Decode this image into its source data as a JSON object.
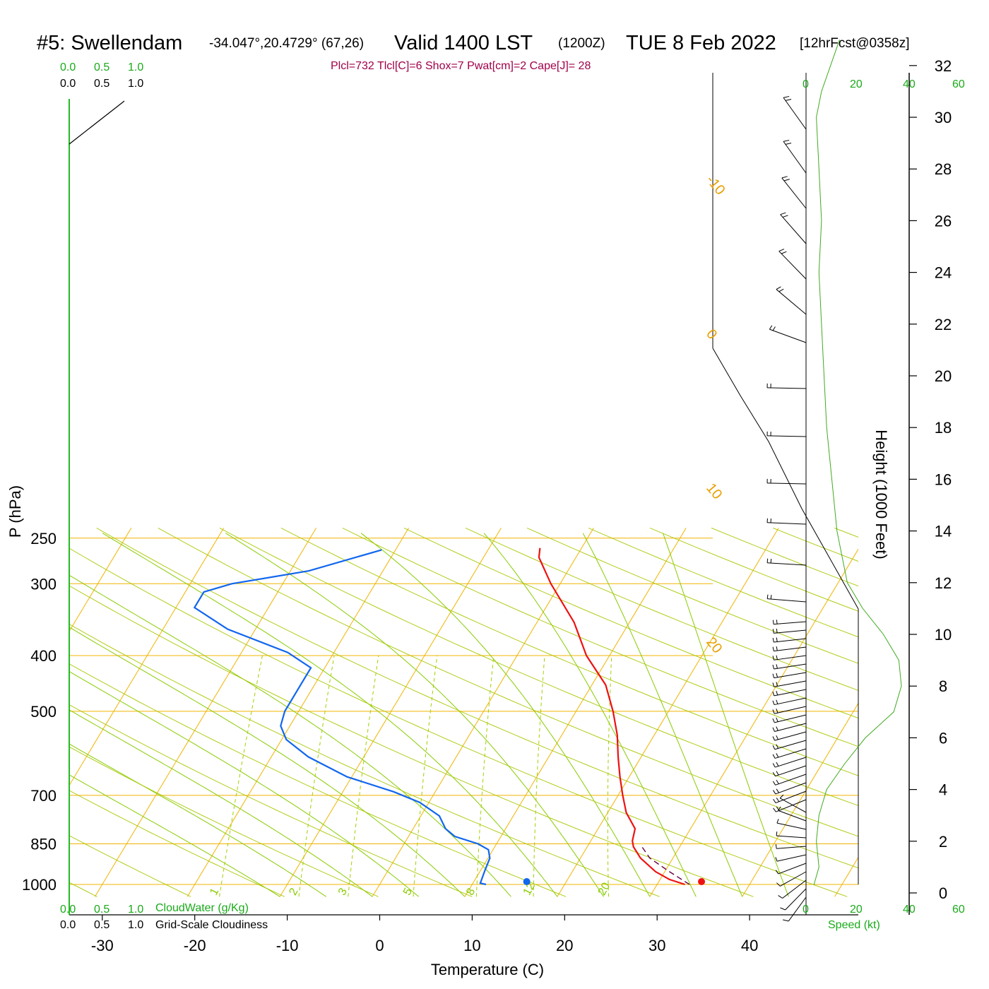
{
  "header": {
    "station": "#5: Swellendam",
    "coords": "-34.047°,20.4729° (67,26)",
    "valid": "Valid 1400 LST",
    "utc": "(1200Z)",
    "date": "TUE 8 Feb 2022",
    "forecast": "[12hrFcst@0358z]"
  },
  "indices": "Plcl=732 Tlcl[C]=6 Shox=7 Pwat[cm]=2 Cape[J]= 28",
  "cloud_scale": {
    "ticks": [
      "0.0",
      "0.5",
      "1.0"
    ],
    "cloud_water_label": "CloudWater (g/Kg)",
    "cloudiness_label": "Grid-Scale Cloudiness"
  },
  "speed_axis": {
    "ticks": [
      "0",
      "20",
      "40",
      "60"
    ],
    "label": "Speed (kt)"
  },
  "colors": {
    "temperature": "#ee1111",
    "dewpoint": "#1166ee",
    "isotherm_isobar": "#f0b400",
    "dry_adiabat": "#a8c800",
    "moist_adiabat": "#88cc00",
    "mixing_ratio": "#a0d000",
    "wind_speed": "#40aa20",
    "parcel": "#660044"
  },
  "chart_data": {
    "type": "skew-t",
    "xlabel": "Temperature (C)",
    "ylabel": "P (hPa)",
    "y2label": "Height (1000 Feet)",
    "x_ticks": [
      -30,
      -20,
      -10,
      0,
      10,
      20,
      30,
      40
    ],
    "p_ticks": [
      250,
      300,
      400,
      500,
      700,
      850,
      1000
    ],
    "height_ticks": [
      0,
      2,
      4,
      6,
      8,
      10,
      12,
      14,
      16,
      18,
      20,
      22,
      24,
      26,
      28,
      30,
      32
    ],
    "isotherm_labels": [
      -30,
      -20,
      -10,
      0,
      10,
      20,
      30
    ],
    "mixing_ratio_labels": [
      1,
      2,
      3,
      5,
      8,
      12,
      20
    ],
    "surface_temperature": 34.8,
    "surface_dewpoint": 15.9,
    "temperature_profile": [
      [
        1000,
        33.0
      ],
      [
        980,
        31.0
      ],
      [
        950,
        29.0
      ],
      [
        900,
        26.5
      ],
      [
        860,
        25.0
      ],
      [
        840,
        24.5
      ],
      [
        800,
        24.0
      ],
      [
        750,
        22.0
      ],
      [
        700,
        20.5
      ],
      [
        650,
        19.0
      ],
      [
        600,
        17.5
      ],
      [
        550,
        16.0
      ],
      [
        500,
        14.0
      ],
      [
        450,
        11.5
      ],
      [
        400,
        7.5
      ],
      [
        350,
        4.0
      ],
      [
        300,
        -1.0
      ],
      [
        270,
        -4.0
      ],
      [
        260,
        -4.5
      ]
    ],
    "dewpoint_profile": [
      [
        1000,
        11.5
      ],
      [
        995,
        10.8
      ],
      [
        950,
        10.5
      ],
      [
        900,
        10.2
      ],
      [
        870,
        9.5
      ],
      [
        850,
        8.0
      ],
      [
        825,
        5.0
      ],
      [
        800,
        3.5
      ],
      [
        760,
        2.0
      ],
      [
        720,
        -1.0
      ],
      [
        690,
        -4.5
      ],
      [
        650,
        -10.5
      ],
      [
        600,
        -16.0
      ],
      [
        560,
        -19.5
      ],
      [
        530,
        -21.0
      ],
      [
        500,
        -21.5
      ],
      [
        450,
        -21.5
      ],
      [
        420,
        -21.5
      ],
      [
        395,
        -25.0
      ],
      [
        360,
        -33.0
      ],
      [
        330,
        -38.0
      ],
      [
        310,
        -38.0
      ],
      [
        300,
        -35.5
      ],
      [
        285,
        -28.0
      ],
      [
        262,
        -21.5
      ]
    ],
    "parcel_profile": [
      [
        1000,
        33.5
      ],
      [
        950,
        30.5
      ],
      [
        900,
        27.5
      ],
      [
        862,
        26.0
      ]
    ],
    "wind_speed_profile": [
      [
        0.3,
        3
      ],
      [
        1,
        5
      ],
      [
        2,
        4
      ],
      [
        3,
        5
      ],
      [
        4,
        8
      ],
      [
        5,
        15
      ],
      [
        6,
        23
      ],
      [
        7,
        34
      ],
      [
        8,
        37
      ],
      [
        9,
        36
      ],
      [
        10,
        30
      ],
      [
        11,
        22
      ],
      [
        12,
        16
      ],
      [
        14,
        12
      ],
      [
        16,
        10
      ],
      [
        18,
        8
      ],
      [
        20,
        7
      ],
      [
        22,
        6
      ],
      [
        24,
        5
      ],
      [
        26,
        6
      ],
      [
        28,
        5
      ],
      [
        30,
        4
      ],
      [
        31,
        6
      ],
      [
        33,
        13
      ]
    ]
  }
}
